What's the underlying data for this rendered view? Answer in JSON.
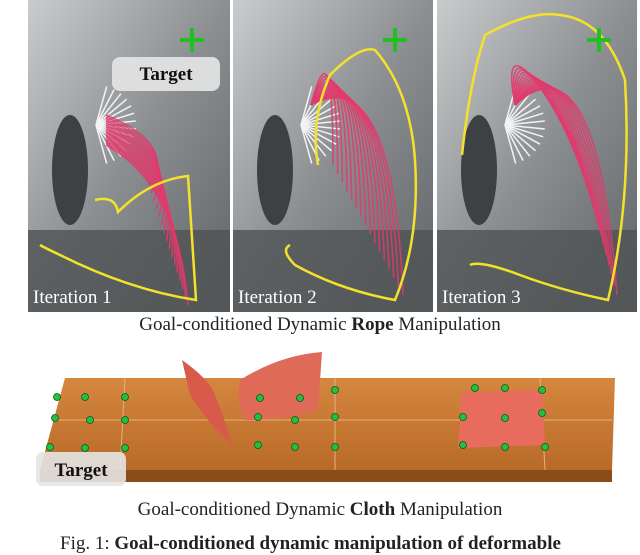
{
  "rope_panels": [
    {
      "label": "Iteration 1"
    },
    {
      "label": "Iteration 2"
    },
    {
      "label": "Iteration 3"
    }
  ],
  "rope_target_label": "Target",
  "rope_caption": {
    "before": "Goal-conditioned Dynamic ",
    "bold": "Rope",
    "after": " Manipulation"
  },
  "cloth_target_label": "Target",
  "cloth_caption": {
    "before": "Goal-conditioned Dynamic ",
    "bold": "Cloth",
    "after": " Manipulation"
  },
  "figure_caption": {
    "label": "Fig. 1:",
    "bold": "Goal-conditioned dynamic manipulation of deformable"
  }
}
